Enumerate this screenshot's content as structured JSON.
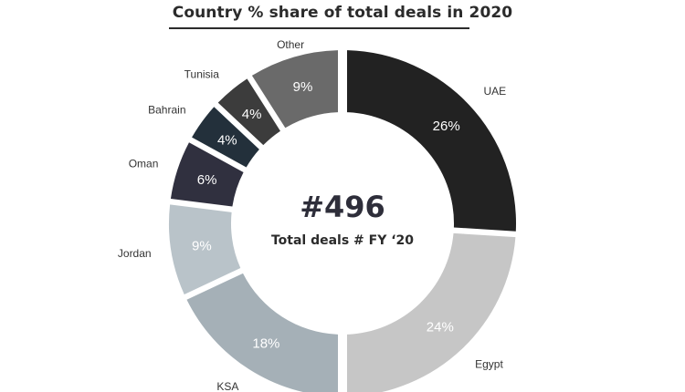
{
  "chart_data": {
    "type": "pie",
    "title": "Country % share of total deals in 2020",
    "center_value": "#496",
    "center_label": "Total deals # FY ‘20",
    "slices": [
      {
        "name": "UAE",
        "value": 26,
        "label": "26%",
        "color": "#222222",
        "text_color": "#ffffff"
      },
      {
        "name": "Egypt",
        "value": 24,
        "label": "24%",
        "color": "#c6c6c6",
        "text_color": "#ffffff"
      },
      {
        "name": "KSA",
        "value": 18,
        "label": "18%",
        "color": "#a5b0b7",
        "text_color": "#ffffff"
      },
      {
        "name": "Jordan",
        "value": 9,
        "label": "9%",
        "color": "#b9c3c9",
        "text_color": "#ffffff"
      },
      {
        "name": "Oman",
        "value": 6,
        "label": "6%",
        "color": "#30303f",
        "text_color": "#ffffff"
      },
      {
        "name": "Bahrain",
        "value": 4,
        "label": "4%",
        "color": "#23303b",
        "text_color": "#ffffff"
      },
      {
        "name": "Tunisia",
        "value": 4,
        "label": "4%",
        "color": "#3c3c3c",
        "text_color": "#ffffff"
      },
      {
        "name": "Other",
        "value": 9,
        "label": "9%",
        "color": "#6a6a6a",
        "text_color": "#ffffff"
      }
    ]
  }
}
